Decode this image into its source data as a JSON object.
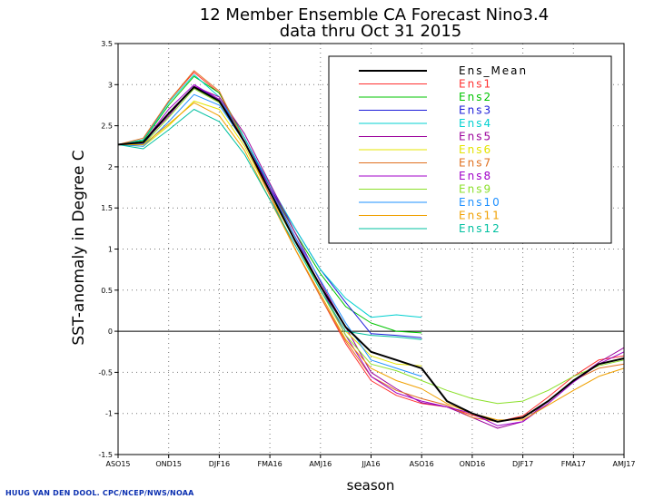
{
  "chart_data": {
    "type": "line",
    "title": "12 Member Ensemble CA Forecast Nino3.4",
    "subtitle": "data thru Oct 31 2015",
    "xlabel": "season",
    "ylabel": "SST-anomaly in Degree C",
    "ylim": [
      -1.5,
      3.5
    ],
    "y_ticks": [
      "-1.5",
      "-1",
      "-0.5",
      "0",
      "0.5",
      "1",
      "1.5",
      "2",
      "2.5",
      "3",
      "3.5"
    ],
    "x_tick_labels": [
      "ASO15",
      "OND15",
      "DJF16",
      "FMA16",
      "AMJ16",
      "JJA16",
      "ASO16",
      "OND16",
      "DJF17",
      "FMA17",
      "AMJ17"
    ],
    "x_range": [
      0,
      20
    ],
    "grid": true,
    "zero_line": true,
    "legend_position": "top-right",
    "series": [
      {
        "name": "Ens_Mean",
        "color": "#000000",
        "width": 2,
        "x": [
          0,
          1,
          2,
          3,
          4,
          5,
          6,
          7,
          8,
          9,
          10,
          11,
          12,
          13,
          14,
          15,
          16,
          17,
          18,
          19,
          20
        ],
        "values": [
          2.27,
          2.3,
          2.65,
          2.97,
          2.8,
          2.3,
          1.7,
          1.1,
          0.55,
          0.05,
          -0.25,
          -0.35,
          -0.45,
          -0.85,
          -1.0,
          -1.1,
          -1.05,
          -0.85,
          -0.6,
          -0.4,
          -0.33
        ]
      },
      {
        "name": "Ens1",
        "color": "#ff3030",
        "width": 1,
        "x": [
          0,
          1,
          2,
          3,
          4,
          5,
          6,
          7,
          8,
          9,
          10,
          11,
          12,
          13,
          14,
          15,
          16,
          17,
          18,
          19,
          20
        ],
        "values": [
          2.27,
          2.33,
          2.8,
          3.15,
          2.9,
          2.3,
          1.65,
          1.0,
          0.42,
          -0.15,
          -0.6,
          -0.78,
          -0.88,
          -0.92,
          -1.02,
          -1.1,
          -1.03,
          -0.8,
          -0.55,
          -0.35,
          -0.3
        ]
      },
      {
        "name": "Ens2",
        "color": "#00c400",
        "width": 1,
        "x": [
          0,
          1,
          2,
          3,
          4,
          5,
          6,
          7,
          8,
          9,
          10,
          11,
          12
        ],
        "values": [
          2.27,
          2.32,
          2.75,
          3.1,
          2.9,
          2.35,
          1.75,
          1.2,
          0.7,
          0.3,
          0.1,
          0.0,
          -0.02
        ]
      },
      {
        "name": "Ens3",
        "color": "#1b1bd9",
        "width": 1,
        "x": [
          0,
          1,
          2,
          3,
          4,
          5,
          6,
          7,
          8,
          9,
          10,
          11,
          12
        ],
        "values": [
          2.27,
          2.28,
          2.65,
          2.98,
          2.82,
          2.35,
          1.75,
          1.25,
          0.75,
          0.35,
          -0.03,
          -0.05,
          -0.08
        ]
      },
      {
        "name": "Ens4",
        "color": "#00d0d0",
        "width": 1,
        "x": [
          0,
          1,
          2,
          3,
          4,
          5,
          6,
          7,
          8,
          9,
          10,
          11,
          12
        ],
        "values": [
          2.27,
          2.33,
          2.78,
          3.12,
          2.85,
          2.35,
          1.78,
          1.25,
          0.75,
          0.4,
          0.17,
          0.2,
          0.17
        ]
      },
      {
        "name": "Ens5",
        "color": "#9b009b",
        "width": 1,
        "x": [
          0,
          1,
          2,
          3,
          4,
          5,
          6,
          7,
          8,
          9,
          10,
          11,
          12,
          13,
          14,
          15,
          16,
          17,
          18,
          19,
          20
        ],
        "values": [
          2.27,
          2.3,
          2.62,
          2.98,
          2.85,
          2.4,
          1.8,
          1.2,
          0.6,
          0.05,
          -0.5,
          -0.7,
          -0.87,
          -0.92,
          -1.05,
          -1.18,
          -1.1,
          -0.85,
          -0.6,
          -0.38,
          -0.2
        ]
      },
      {
        "name": "Ens6",
        "color": "#e4e400",
        "width": 1,
        "x": [
          0,
          1,
          2,
          3,
          4,
          5,
          6,
          7,
          8,
          9,
          10,
          11,
          12
        ],
        "values": [
          2.27,
          2.25,
          2.5,
          2.8,
          2.7,
          2.25,
          1.65,
          1.1,
          0.5,
          0.0,
          -0.3,
          -0.4,
          -0.42
        ]
      },
      {
        "name": "Ens7",
        "color": "#e07020",
        "width": 1,
        "x": [
          0,
          1,
          2,
          3,
          4,
          5,
          6,
          7,
          8,
          9,
          10,
          11,
          12,
          13,
          14,
          15,
          16,
          17,
          18,
          19,
          20
        ],
        "values": [
          2.27,
          2.35,
          2.8,
          3.17,
          2.92,
          2.3,
          1.65,
          1.0,
          0.42,
          -0.12,
          -0.55,
          -0.72,
          -0.82,
          -0.9,
          -1.05,
          -1.1,
          -1.06,
          -0.85,
          -0.6,
          -0.45,
          -0.4
        ]
      },
      {
        "name": "Ens8",
        "color": "#a000c8",
        "width": 1,
        "x": [
          0,
          1,
          2,
          3,
          4,
          5,
          6,
          7,
          8,
          9,
          10,
          11,
          12,
          13,
          14,
          15,
          16,
          17,
          18,
          19,
          20
        ],
        "values": [
          2.27,
          2.3,
          2.7,
          3.0,
          2.82,
          2.3,
          1.75,
          1.15,
          0.55,
          -0.05,
          -0.55,
          -0.75,
          -0.85,
          -0.92,
          -1.0,
          -1.15,
          -1.1,
          -0.88,
          -0.62,
          -0.4,
          -0.25
        ]
      },
      {
        "name": "Ens9",
        "color": "#8be02a",
        "width": 1,
        "x": [
          0,
          1,
          2,
          3,
          4,
          5,
          6,
          7,
          8,
          9,
          10,
          11,
          12,
          13,
          14,
          15,
          16,
          17,
          18,
          19,
          20
        ],
        "values": [
          2.27,
          2.27,
          2.6,
          2.95,
          2.78,
          2.3,
          1.7,
          1.1,
          0.5,
          -0.05,
          -0.4,
          -0.48,
          -0.6,
          -0.72,
          -0.82,
          -0.88,
          -0.85,
          -0.72,
          -0.55,
          -0.42,
          -0.35
        ]
      },
      {
        "name": "Ens10",
        "color": "#1e90ff",
        "width": 1,
        "x": [
          0,
          1,
          2,
          3,
          4,
          5,
          6,
          7,
          8,
          9,
          10,
          11,
          12
        ],
        "values": [
          2.27,
          2.25,
          2.55,
          2.88,
          2.75,
          2.3,
          1.72,
          1.15,
          0.62,
          0.1,
          -0.35,
          -0.45,
          -0.55
        ]
      },
      {
        "name": "Ens11",
        "color": "#f0a000",
        "width": 1,
        "x": [
          0,
          1,
          2,
          3,
          4,
          5,
          6,
          7,
          8,
          9,
          10,
          11,
          12,
          13,
          14,
          15,
          16,
          17,
          18,
          19,
          20
        ],
        "values": [
          2.27,
          2.27,
          2.52,
          2.78,
          2.62,
          2.2,
          1.6,
          1.0,
          0.45,
          -0.1,
          -0.45,
          -0.6,
          -0.7,
          -0.88,
          -1.0,
          -1.08,
          -1.08,
          -0.9,
          -0.72,
          -0.55,
          -0.45
        ]
      },
      {
        "name": "Ens12",
        "color": "#00c0a0",
        "width": 1,
        "x": [
          0,
          1,
          2,
          3,
          4,
          5,
          6,
          7,
          8,
          9,
          10,
          11,
          12
        ],
        "values": [
          2.27,
          2.22,
          2.45,
          2.7,
          2.55,
          2.15,
          1.6,
          1.05,
          0.5,
          0.0,
          -0.05,
          -0.07,
          -0.1
        ]
      }
    ]
  },
  "footer": {
    "credit": "HUUG VAN DEN DOOL. CPC/NCEP/NWS/NOAA"
  }
}
